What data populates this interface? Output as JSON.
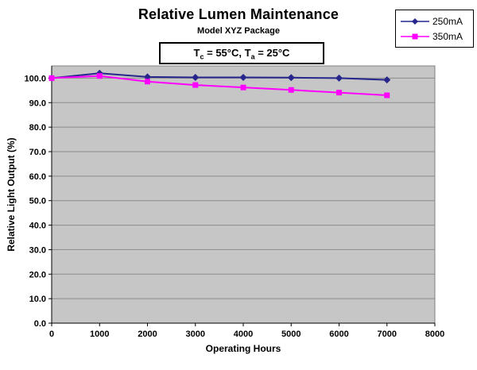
{
  "condition": {
    "t1": "T",
    "s1": "c",
    "v1": " = 55°C,",
    "t2": " T",
    "s2": "a",
    "v2": " = 25°C"
  },
  "chart_data": {
    "type": "line",
    "title": "Relative Lumen Maintenance",
    "subtitle": "Model XYZ Package",
    "annotation": "Tc = 55°C, Ta = 25°C",
    "xlabel": "Operating Hours",
    "ylabel": "Relative Light Output (%)",
    "xlim": [
      0,
      8000
    ],
    "ylim": [
      0,
      105
    ],
    "grid": "horizontal",
    "legend_position": "top-right-outside",
    "plot_bg": "#c6c6c6",
    "plot_border": "#808080",
    "grid_color": "#8a8a8a",
    "axis_color": "#000000",
    "xticks": [
      {
        "v": 0,
        "label": "0"
      },
      {
        "v": 1000,
        "label": "1000"
      },
      {
        "v": 2000,
        "label": "2000"
      },
      {
        "v": 3000,
        "label": "3000"
      },
      {
        "v": 4000,
        "label": "4000"
      },
      {
        "v": 5000,
        "label": "5000"
      },
      {
        "v": 6000,
        "label": "6000"
      },
      {
        "v": 7000,
        "label": "7000"
      },
      {
        "v": 8000,
        "label": "8000"
      }
    ],
    "yticks": [
      {
        "v": 0,
        "label": "0.0"
      },
      {
        "v": 10,
        "label": "10.0"
      },
      {
        "v": 20,
        "label": "20.0"
      },
      {
        "v": 30,
        "label": "30.0"
      },
      {
        "v": 40,
        "label": "40.0"
      },
      {
        "v": 50,
        "label": "50.0"
      },
      {
        "v": 60,
        "label": "60.0"
      },
      {
        "v": 70,
        "label": "70.0"
      },
      {
        "v": 80,
        "label": "80.0"
      },
      {
        "v": 90,
        "label": "90.0"
      },
      {
        "v": 100,
        "label": "100.0"
      }
    ],
    "x": [
      0,
      1000,
      2000,
      3000,
      4000,
      5000,
      6000,
      7000
    ],
    "series": [
      {
        "name": "250mA",
        "color": "#26268c",
        "marker": "diamond",
        "values": [
          100.0,
          102.0,
          100.5,
          100.3,
          100.3,
          100.2,
          100.0,
          99.3
        ]
      },
      {
        "name": "350mA",
        "color": "#ff00ff",
        "marker": "square",
        "values": [
          100.0,
          100.9,
          98.6,
          97.2,
          96.2,
          95.2,
          94.1,
          93.0
        ]
      }
    ]
  }
}
